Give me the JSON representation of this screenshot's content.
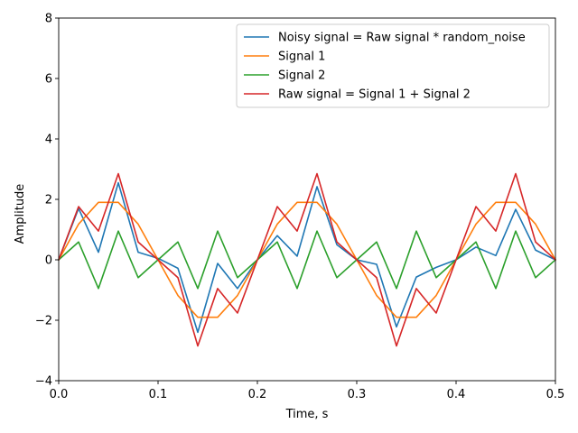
{
  "chart_data": {
    "type": "line",
    "title": "",
    "xlabel": "Time, s",
    "ylabel": "Amplitude",
    "xlim": [
      0.0,
      0.5
    ],
    "ylim": [
      -4,
      8
    ],
    "xticks": [
      0.0,
      0.1,
      0.2,
      0.3,
      0.4,
      0.5
    ],
    "xtick_labels": [
      "0.0",
      "0.1",
      "0.2",
      "0.3",
      "0.4",
      "0.5"
    ],
    "yticks": [
      -4,
      -2,
      0,
      2,
      4,
      6,
      8
    ],
    "ytick_labels": [
      "−4",
      "−2",
      "0",
      "2",
      "4",
      "6",
      "8"
    ],
    "grid": false,
    "legend_position": "top-right",
    "x": [
      0.0,
      0.02,
      0.04,
      0.06,
      0.08,
      0.1,
      0.12,
      0.14,
      0.16,
      0.18,
      0.2,
      0.22,
      0.24,
      0.26,
      0.28,
      0.3,
      0.32,
      0.34,
      0.36,
      0.38,
      0.4,
      0.42,
      0.44,
      0.46,
      0.48,
      0.5
    ],
    "series": [
      {
        "name": "Noisy signal = Raw signal * random_noise",
        "color": "#1f77b4",
        "values": [
          0.0,
          1.7,
          0.25,
          2.55,
          0.25,
          0.05,
          -0.28,
          -2.4,
          -0.12,
          -0.95,
          0.0,
          0.8,
          0.12,
          2.42,
          0.5,
          0.0,
          -0.15,
          -2.22,
          -0.57,
          -0.25,
          0.0,
          0.42,
          0.14,
          1.67,
          0.32,
          0.0
        ]
      },
      {
        "name": "Signal 1",
        "color": "#ff7f0e",
        "values": [
          0.0,
          1.18,
          1.9,
          1.9,
          1.18,
          0.0,
          -1.18,
          -1.9,
          -1.9,
          -1.18,
          0.0,
          1.18,
          1.9,
          1.9,
          1.18,
          0.0,
          -1.18,
          -1.9,
          -1.9,
          -1.18,
          0.0,
          1.18,
          1.9,
          1.9,
          1.18,
          0.0
        ]
      },
      {
        "name": "Signal 2",
        "color": "#2ca02c",
        "values": [
          0.0,
          0.59,
          -0.95,
          0.95,
          -0.59,
          0.0,
          0.59,
          -0.95,
          0.95,
          -0.59,
          0.0,
          0.59,
          -0.95,
          0.95,
          -0.59,
          0.0,
          0.59,
          -0.95,
          0.95,
          -0.59,
          0.0,
          0.59,
          -0.95,
          0.95,
          -0.59,
          0.0
        ]
      },
      {
        "name": "Raw signal = Signal 1 + Signal 2",
        "color": "#d62728",
        "values": [
          0.0,
          1.76,
          0.95,
          2.85,
          0.59,
          0.0,
          -0.59,
          -2.85,
          -0.95,
          -1.76,
          0.0,
          1.76,
          0.95,
          2.85,
          0.59,
          0.0,
          -0.59,
          -2.85,
          -0.95,
          -1.76,
          0.0,
          1.76,
          0.95,
          2.85,
          0.59,
          0.0
        ]
      }
    ]
  }
}
